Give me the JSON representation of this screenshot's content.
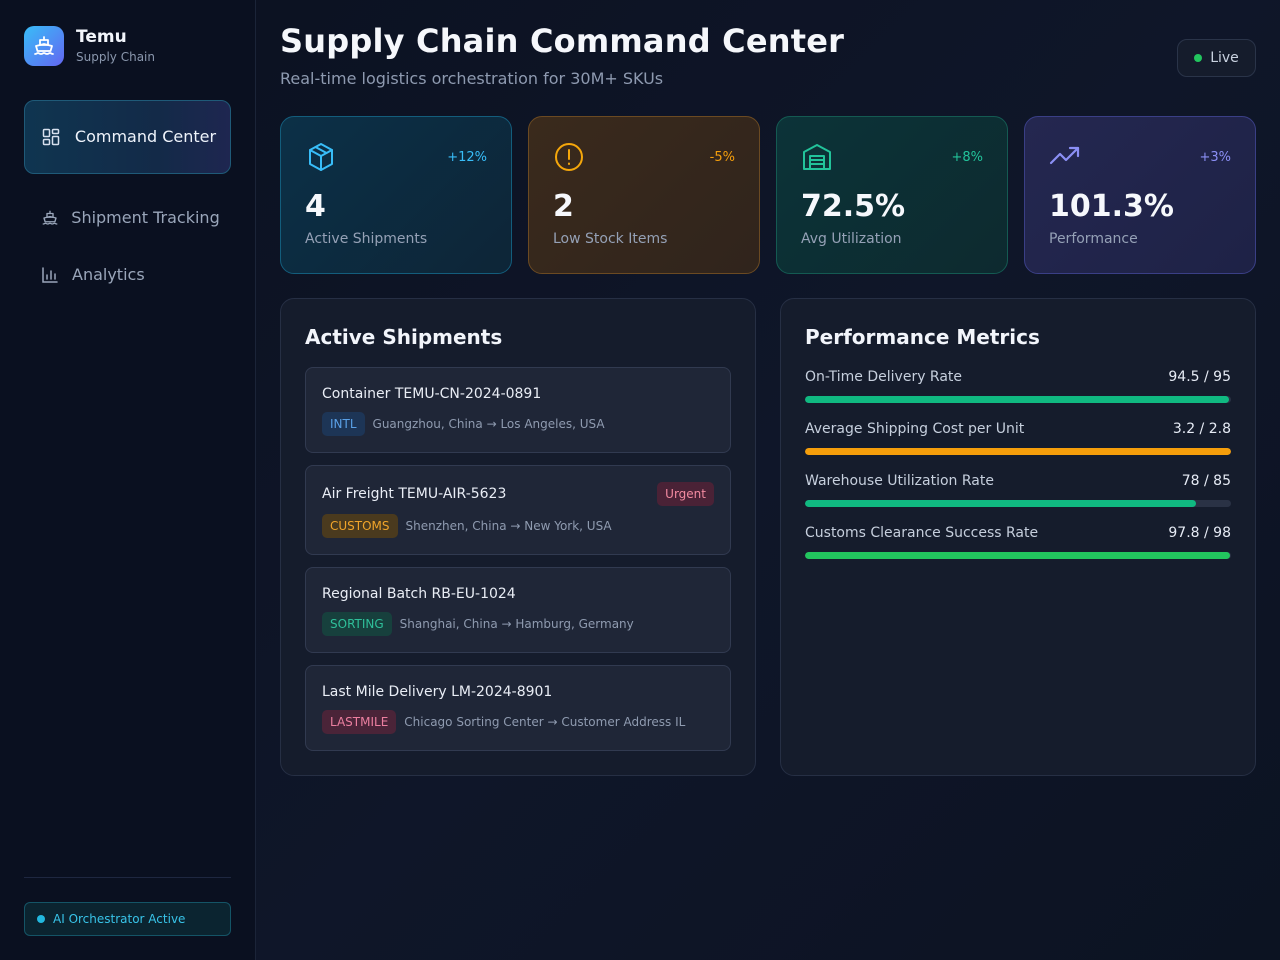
{
  "brand": {
    "name": "Temu",
    "subtitle": "Supply Chain",
    "icon": "ship-icon"
  },
  "sidebar": {
    "items": [
      {
        "label": "Command Center",
        "icon": "grid-icon",
        "active": true
      },
      {
        "label": "Shipment Tracking",
        "icon": "ship-icon",
        "active": false
      },
      {
        "label": "Analytics",
        "icon": "bar-chart-icon",
        "active": false
      }
    ],
    "status": "AI Orchestrator Active"
  },
  "header": {
    "title": "Supply Chain Command Center",
    "subtitle": "Real-time logistics orchestration for 30M+ SKUs",
    "live_label": "Live"
  },
  "stats": [
    {
      "icon": "package-icon",
      "delta": "+12%",
      "value": "4",
      "label": "Active Shipments",
      "color": "#38bdf8"
    },
    {
      "icon": "alert-circle-icon",
      "delta": "-5%",
      "value": "2",
      "label": "Low Stock Items",
      "color": "#f59e0b"
    },
    {
      "icon": "warehouse-icon",
      "delta": "+8%",
      "value": "72.5%",
      "label": "Avg Utilization",
      "color": "#22c39a"
    },
    {
      "icon": "trending-up-icon",
      "delta": "+3%",
      "value": "101.3%",
      "label": "Performance",
      "color": "#8b8ff5"
    }
  ],
  "shipments": {
    "title": "Active Shipments",
    "items": [
      {
        "name": "Container TEMU-CN-2024-0891",
        "tag": "INTL",
        "route": "Guangzhou, China → Los Angeles, USA",
        "urgent": "",
        "tag_color": "#5aa0e6",
        "tag_bg": "#1d3556"
      },
      {
        "name": "Air Freight TEMU-AIR-5623",
        "tag": "CUSTOMS",
        "route": "Shenzhen, China → New York, USA",
        "urgent": "Urgent",
        "tag_color": "#f0a42a",
        "tag_bg": "#4a3a1e"
      },
      {
        "name": "Regional Batch RB-EU-1024",
        "tag": "SORTING",
        "route": "Shanghai, China → Hamburg, Germany",
        "urgent": "",
        "tag_color": "#2fbf9a",
        "tag_bg": "#17403d"
      },
      {
        "name": "Last Mile Delivery LM-2024-8901",
        "tag": "LASTMILE",
        "route": "Chicago Sorting Center → Customer Address IL",
        "urgent": "",
        "tag_color": "#ec7fa0",
        "tag_bg": "#4a2438"
      }
    ]
  },
  "performance": {
    "title": "Performance Metrics",
    "metrics": [
      {
        "label": "On-Time Delivery Rate",
        "value": "94.5 / 95",
        "fill": 0.995,
        "color": "#10b981"
      },
      {
        "label": "Average Shipping Cost per Unit",
        "value": "3.2 / 2.8",
        "fill": 1.0,
        "color": "#f59e0b"
      },
      {
        "label": "Warehouse Utilization Rate",
        "value": "78 / 85",
        "fill": 0.918,
        "color": "#10b981"
      },
      {
        "label": "Customs Clearance Success Rate",
        "value": "97.8 / 98",
        "fill": 0.998,
        "color": "#22c55e"
      }
    ]
  }
}
